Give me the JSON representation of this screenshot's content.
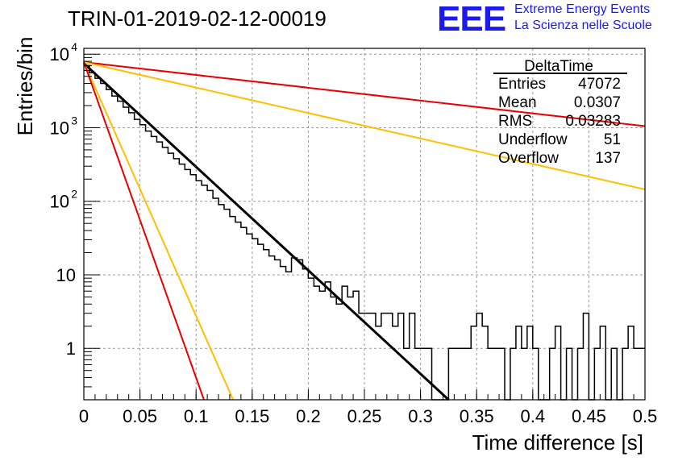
{
  "title": "TRIN-01-2019-02-12-00019",
  "logo": {
    "text": "EEE",
    "line1": "Extreme Energy Events",
    "line2": "La Scienza nelle Scuole"
  },
  "stats": {
    "name": "DeltaTime",
    "rows": [
      {
        "label": "Entries",
        "value": "47072"
      },
      {
        "label": "Mean",
        "value": "0.0307"
      },
      {
        "label": "RMS",
        "value": "0.03283"
      },
      {
        "label": "Underflow",
        "value": "51"
      },
      {
        "label": "Overflow",
        "value": "137"
      }
    ]
  },
  "chart_data": {
    "type": "line",
    "title": "TRIN-01-2019-02-12-00019",
    "xlabel": "Time difference [s]",
    "ylabel": "Entries/bin",
    "xlim": [
      0,
      0.5
    ],
    "ylim": [
      0.2,
      12000
    ],
    "yscale": "log",
    "grid": true,
    "xticks": [
      "0",
      "0.05",
      "0.1",
      "0.15",
      "0.2",
      "0.25",
      "0.3",
      "0.35",
      "0.4",
      "0.45",
      "0.5"
    ],
    "yticks": [
      {
        "value": 1,
        "base": "1",
        "exp": ""
      },
      {
        "value": 10,
        "base": "10",
        "exp": ""
      },
      {
        "value": 100,
        "base": "10",
        "exp": "2"
      },
      {
        "value": 1000,
        "base": "10",
        "exp": "3"
      },
      {
        "value": 10000,
        "base": "10",
        "exp": "4"
      }
    ],
    "histogram": {
      "name": "DeltaTime",
      "color": "#000000",
      "bin_width": 0.005,
      "x": [
        0,
        0.005,
        0.01,
        0.015,
        0.02,
        0.025,
        0.03,
        0.035,
        0.04,
        0.045,
        0.05,
        0.055,
        0.06,
        0.065,
        0.07,
        0.075,
        0.08,
        0.085,
        0.09,
        0.095,
        0.1,
        0.105,
        0.11,
        0.115,
        0.12,
        0.125,
        0.13,
        0.135,
        0.14,
        0.145,
        0.15,
        0.155,
        0.16,
        0.165,
        0.17,
        0.175,
        0.18,
        0.185,
        0.19,
        0.195,
        0.2,
        0.205,
        0.21,
        0.215,
        0.22,
        0.225,
        0.23,
        0.235,
        0.24,
        0.245,
        0.25,
        0.255,
        0.26,
        0.265,
        0.27,
        0.275,
        0.28,
        0.285,
        0.29,
        0.295,
        0.3,
        0.305,
        0.31,
        0.315,
        0.32,
        0.325,
        0.33,
        0.335,
        0.34,
        0.345,
        0.35,
        0.355,
        0.36,
        0.365,
        0.37,
        0.375,
        0.38,
        0.385,
        0.39,
        0.395,
        0.4,
        0.405,
        0.41,
        0.415,
        0.42,
        0.425,
        0.43,
        0.435,
        0.44,
        0.445,
        0.45,
        0.455,
        0.46,
        0.465,
        0.47,
        0.475,
        0.48,
        0.485,
        0.49,
        0.495
      ],
      "values": [
        7000,
        5600,
        4700,
        4000,
        3300,
        2700,
        2300,
        1900,
        1600,
        1300,
        1100,
        900,
        760,
        640,
        540,
        450,
        380,
        320,
        270,
        230,
        190,
        165,
        140,
        110,
        90,
        78,
        62,
        52,
        44,
        36,
        31,
        26,
        22,
        18,
        16,
        13,
        11,
        17,
        16,
        12,
        9,
        7,
        6,
        8,
        5,
        4,
        7,
        5,
        6,
        3,
        3,
        3,
        2,
        3,
        3,
        2,
        3,
        1,
        3,
        1,
        1,
        1,
        0,
        0,
        0,
        1,
        1,
        1,
        1,
        2,
        3,
        2,
        1,
        1,
        1,
        0,
        1,
        2,
        1,
        2,
        1,
        0,
        0,
        1,
        2,
        0,
        1,
        0,
        1,
        3,
        0,
        1,
        2,
        0,
        1,
        0,
        1,
        2,
        1,
        1
      ]
    },
    "series": [
      {
        "kind": "fit",
        "color": "#000000",
        "x": [
          0,
          0.325
        ],
        "values": [
          7500,
          0.2
        ]
      },
      {
        "kind": "exponential",
        "color": "#e80000",
        "x": [
          0,
          0.5
        ],
        "values": [
          7800,
          1050
        ]
      },
      {
        "kind": "exponential",
        "color": "#ffbf00",
        "x": [
          0,
          0.5
        ],
        "values": [
          7800,
          145
        ]
      },
      {
        "kind": "exponential",
        "color": "#ffbf00",
        "x": [
          0,
          0.133
        ],
        "values": [
          7800,
          0.2
        ]
      },
      {
        "kind": "exponential",
        "color": "#e80000",
        "x": [
          0,
          0.107
        ],
        "values": [
          7800,
          0.2
        ]
      }
    ]
  }
}
